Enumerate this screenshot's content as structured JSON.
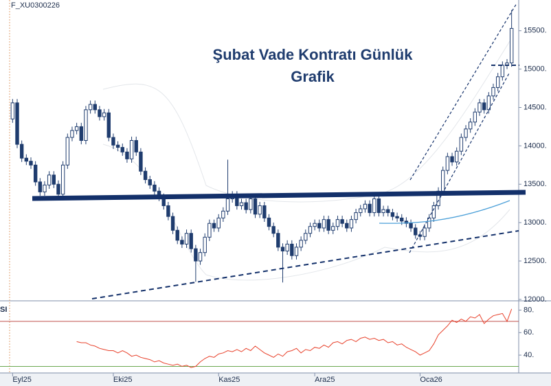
{
  "chart_data": [
    {
      "type": "candlestick",
      "title": "Şubat Vade Kontratı Günlük Grafik",
      "symbol": "F_XU0300226",
      "color": "#1f3c6e",
      "xlim": [
        -0.5,
        109.5
      ],
      "xticks": [
        {
          "value": 0,
          "label": "Eyl25"
        },
        {
          "value": 22,
          "label": "Eki25"
        },
        {
          "value": 45,
          "label": "Kas25"
        },
        {
          "value": 66,
          "label": "Ara25"
        },
        {
          "value": 89,
          "label": "Oca26"
        }
      ],
      "ylim": [
        11990,
        15900
      ],
      "yticks": [
        {
          "value": 12000,
          "label": "12000."
        },
        {
          "value": 12500,
          "label": "12500."
        },
        {
          "value": 13000,
          "label": "13000."
        },
        {
          "value": 13500,
          "label": "13500."
        },
        {
          "value": 14000,
          "label": "14000."
        },
        {
          "value": 14500,
          "label": "14500."
        },
        {
          "value": 15000,
          "label": "15000."
        },
        {
          "value": 15500,
          "label": "15500."
        }
      ],
      "open": [
        14350,
        14560,
        14020,
        13840,
        13800,
        13750,
        13530,
        13400,
        13490,
        13620,
        13500,
        13370,
        13750,
        14110,
        14200,
        14250,
        14070,
        14470,
        14540,
        14470,
        14380,
        14430,
        14110,
        14010,
        13980,
        13920,
        13830,
        14070,
        13920,
        13670,
        13560,
        13490,
        13410,
        13330,
        13220,
        13080,
        12900,
        12770,
        12720,
        12860,
        12660,
        12500,
        12610,
        12810,
        12990,
        12930,
        13060,
        13150,
        13310,
        13360,
        13220,
        13260,
        13170,
        13310,
        13110,
        13220,
        13060,
        12950,
        12860,
        12680,
        12630,
        12720,
        12570,
        12680,
        12770,
        12860,
        12950,
        12990,
        12930,
        13040,
        12900,
        12950,
        13040,
        12990,
        12930,
        13040,
        13130,
        13180,
        13240,
        13130,
        13310,
        13130,
        13170,
        13130,
        13080,
        13060,
        13020,
        12990,
        12930,
        12840,
        12820,
        12930,
        13060,
        13220,
        13410,
        13680,
        13860,
        13790,
        13930,
        14110,
        14220,
        14310,
        14440,
        14560,
        14470,
        14650,
        14760,
        14900,
        15050,
        15080
      ],
      "high": [
        14610,
        14610,
        14070,
        13890,
        13850,
        13800,
        13580,
        13540,
        13670,
        13670,
        13550,
        13800,
        14160,
        14250,
        14300,
        14300,
        14520,
        14590,
        14590,
        14520,
        14480,
        14480,
        14160,
        14060,
        14030,
        13970,
        14120,
        14120,
        13970,
        13720,
        13610,
        13540,
        13460,
        13380,
        13270,
        13130,
        12950,
        12820,
        12910,
        12910,
        12710,
        12660,
        12860,
        13040,
        13040,
        13110,
        13200,
        13820,
        13410,
        13410,
        13310,
        13310,
        13360,
        13360,
        13270,
        13270,
        13110,
        13000,
        12910,
        12730,
        12770,
        12770,
        12730,
        12820,
        12910,
        13000,
        13040,
        13040,
        13090,
        13090,
        13000,
        13090,
        13090,
        13040,
        13090,
        13180,
        13230,
        13290,
        13290,
        13360,
        13360,
        13220,
        13220,
        13180,
        13130,
        13110,
        13070,
        13040,
        12980,
        12890,
        12980,
        13110,
        13270,
        13460,
        13730,
        13910,
        13910,
        13980,
        14160,
        14270,
        14360,
        14490,
        14610,
        14610,
        14700,
        14810,
        14950,
        15100,
        15130,
        15770
      ],
      "low": [
        14300,
        13970,
        13790,
        13750,
        13700,
        13480,
        13350,
        13350,
        13440,
        13450,
        13320,
        13320,
        13700,
        14060,
        14150,
        14020,
        14020,
        14420,
        14420,
        14330,
        14330,
        14060,
        13960,
        13930,
        13870,
        13780,
        13780,
        13870,
        13620,
        13510,
        13440,
        13360,
        13280,
        13170,
        13030,
        12850,
        12720,
        12670,
        12670,
        12610,
        12230,
        12450,
        12560,
        12760,
        12880,
        12880,
        13010,
        13100,
        13260,
        13170,
        13170,
        13120,
        13120,
        13060,
        13060,
        13010,
        12900,
        12810,
        12630,
        12220,
        12580,
        12520,
        12520,
        12630,
        12720,
        12810,
        12900,
        12880,
        12880,
        12850,
        12850,
        12900,
        12940,
        12880,
        12880,
        12990,
        13080,
        13130,
        13080,
        13080,
        13080,
        13080,
        13080,
        13030,
        13010,
        12970,
        12940,
        12880,
        12790,
        12770,
        12770,
        12880,
        13010,
        13170,
        13360,
        13630,
        13740,
        13740,
        13880,
        14060,
        14170,
        14260,
        14390,
        14420,
        14420,
        14600,
        14710,
        14850,
        15000,
        15030
      ],
      "close": [
        14560,
        14020,
        13840,
        13800,
        13750,
        13530,
        13400,
        13490,
        13620,
        13500,
        13370,
        13750,
        14110,
        14200,
        14250,
        14070,
        14470,
        14540,
        14470,
        14380,
        14430,
        14110,
        14010,
        13980,
        13920,
        13830,
        14070,
        13920,
        13670,
        13560,
        13490,
        13410,
        13330,
        13220,
        13080,
        12900,
        12770,
        12720,
        12860,
        12660,
        12500,
        12610,
        12810,
        12990,
        12930,
        13060,
        13150,
        13310,
        13360,
        13220,
        13260,
        13170,
        13310,
        13110,
        13220,
        13060,
        12950,
        12860,
        12680,
        12630,
        12720,
        12570,
        12680,
        12770,
        12860,
        12950,
        12990,
        12930,
        13040,
        12900,
        12950,
        13040,
        12990,
        12930,
        13040,
        13130,
        13180,
        13240,
        13130,
        13310,
        13130,
        13170,
        13130,
        13080,
        13060,
        13020,
        12990,
        12930,
        12840,
        12820,
        12930,
        13060,
        13220,
        13410,
        13680,
        13860,
        13790,
        13930,
        14110,
        14220,
        14310,
        14440,
        14560,
        14470,
        14650,
        14760,
        14900,
        15050,
        15080,
        15530
      ]
    },
    {
      "type": "line",
      "label": "SI",
      "color": "#e8402a",
      "ylim": [
        26,
        87
      ],
      "yticks": [
        {
          "value": 40,
          "label": "40."
        },
        {
          "value": 60,
          "label": "60."
        },
        {
          "value": 80,
          "label": "80."
        }
      ],
      "reference_lines": [
        {
          "value": 70,
          "color": "#c0504d"
        },
        {
          "value": 30,
          "color": "#6aa84f"
        }
      ],
      "values": [
        null,
        null,
        null,
        null,
        null,
        null,
        null,
        null,
        null,
        null,
        null,
        null,
        null,
        null,
        52,
        51,
        51,
        49,
        48,
        46,
        45,
        44,
        44,
        42,
        44,
        42,
        39,
        40,
        38,
        37,
        36,
        34,
        35,
        33,
        32,
        31,
        32,
        30,
        31,
        29,
        30,
        34,
        37,
        39,
        38,
        41,
        42,
        44,
        43,
        45,
        43,
        46,
        44,
        48,
        45,
        42,
        40,
        38,
        41,
        39,
        43,
        44,
        46,
        42,
        45,
        44,
        47,
        46,
        49,
        47,
        51,
        52,
        50,
        53,
        54,
        52,
        55,
        56,
        54,
        55,
        53,
        54,
        51,
        52,
        49,
        50,
        47,
        45,
        43,
        40,
        42,
        44,
        50,
        58,
        62,
        66,
        71,
        69,
        72,
        70,
        74,
        73,
        76,
        68,
        72,
        75,
        76,
        77,
        70,
        81
      ]
    }
  ]
}
